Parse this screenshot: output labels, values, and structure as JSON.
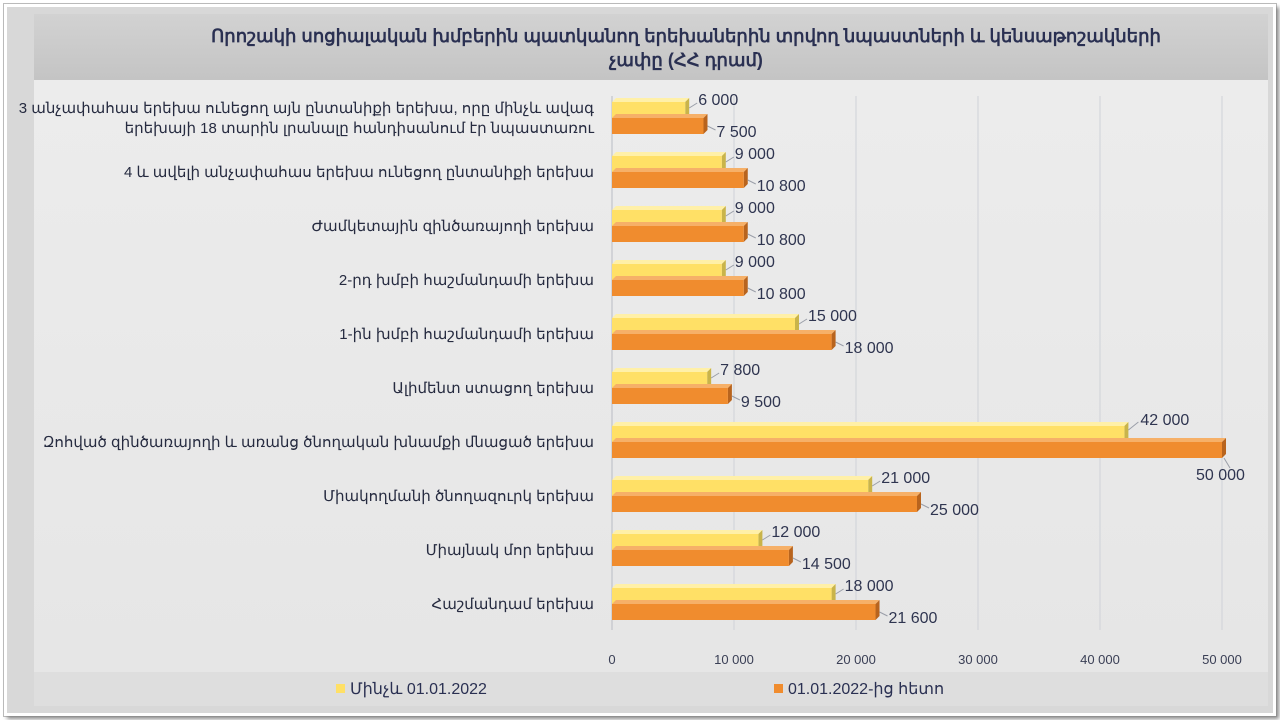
{
  "chart_data": {
    "type": "bar",
    "orientation": "horizontal",
    "title_lines": [
      "Որոշակի սոցիալական խմբերին պատկանող երեխաներին տրվող նպաստների և կենսաթոշակների",
      "չափը (ՀՀ դրամ)"
    ],
    "categories": [
      [
        "3 անչափահաս երեխա ունեցող այն ընտանիքի երեխա, որը մինչև ավագ",
        "երեխայի 18 տարին լրանալը հանդիսանում էր նպաստառու"
      ],
      [
        "4 և ավելի անչափահաս երեխա ունեցող ընտանիքի երեխա"
      ],
      [
        "Ժամկետային զինծառայողի երեխա"
      ],
      [
        "2-րդ խմբի հաշմանդամի երեխա"
      ],
      [
        "1-ին խմբի հաշմանդամի երեխա"
      ],
      [
        "Ալիմենտ ստացող երեխա"
      ],
      [
        "Զոհված զինծառայողի և առանց ծնողական խնամքի մնացած երեխա"
      ],
      [
        "Միակողմանի ծնողազուրկ երեխա"
      ],
      [
        "Միայնակ մոր երեխա"
      ],
      [
        "Հաշմանդամ երեխա"
      ]
    ],
    "series": [
      {
        "name": "Մինչև 01.01.2022",
        "color": "#ffe066",
        "values": [
          6000,
          9000,
          9000,
          9000,
          15000,
          7800,
          42000,
          21000,
          12000,
          18000
        ],
        "labels": [
          "6 000",
          "9 000",
          "9 000",
          "9 000",
          "15 000",
          "7 800",
          "42 000",
          "21 000",
          "12 000",
          "18 000"
        ]
      },
      {
        "name": "01.01.2022-ից հետո",
        "color": "#f08c2e",
        "values": [
          7500,
          10800,
          10800,
          10800,
          18000,
          9500,
          50000,
          25000,
          14500,
          21600
        ],
        "labels": [
          "7 500",
          "10 800",
          "10 800",
          "10 800",
          "18 000",
          "9 500",
          "50 000",
          "25 000",
          "14 500",
          "21 600"
        ]
      }
    ],
    "x_ticks": [
      0,
      10000,
      20000,
      30000,
      40000,
      50000
    ],
    "x_tick_labels": [
      "0",
      "10 000",
      "20 000",
      "30 000",
      "40 000",
      "50 000"
    ],
    "xlim": [
      0,
      50000
    ],
    "grid": true,
    "legend_position": "bottom"
  }
}
